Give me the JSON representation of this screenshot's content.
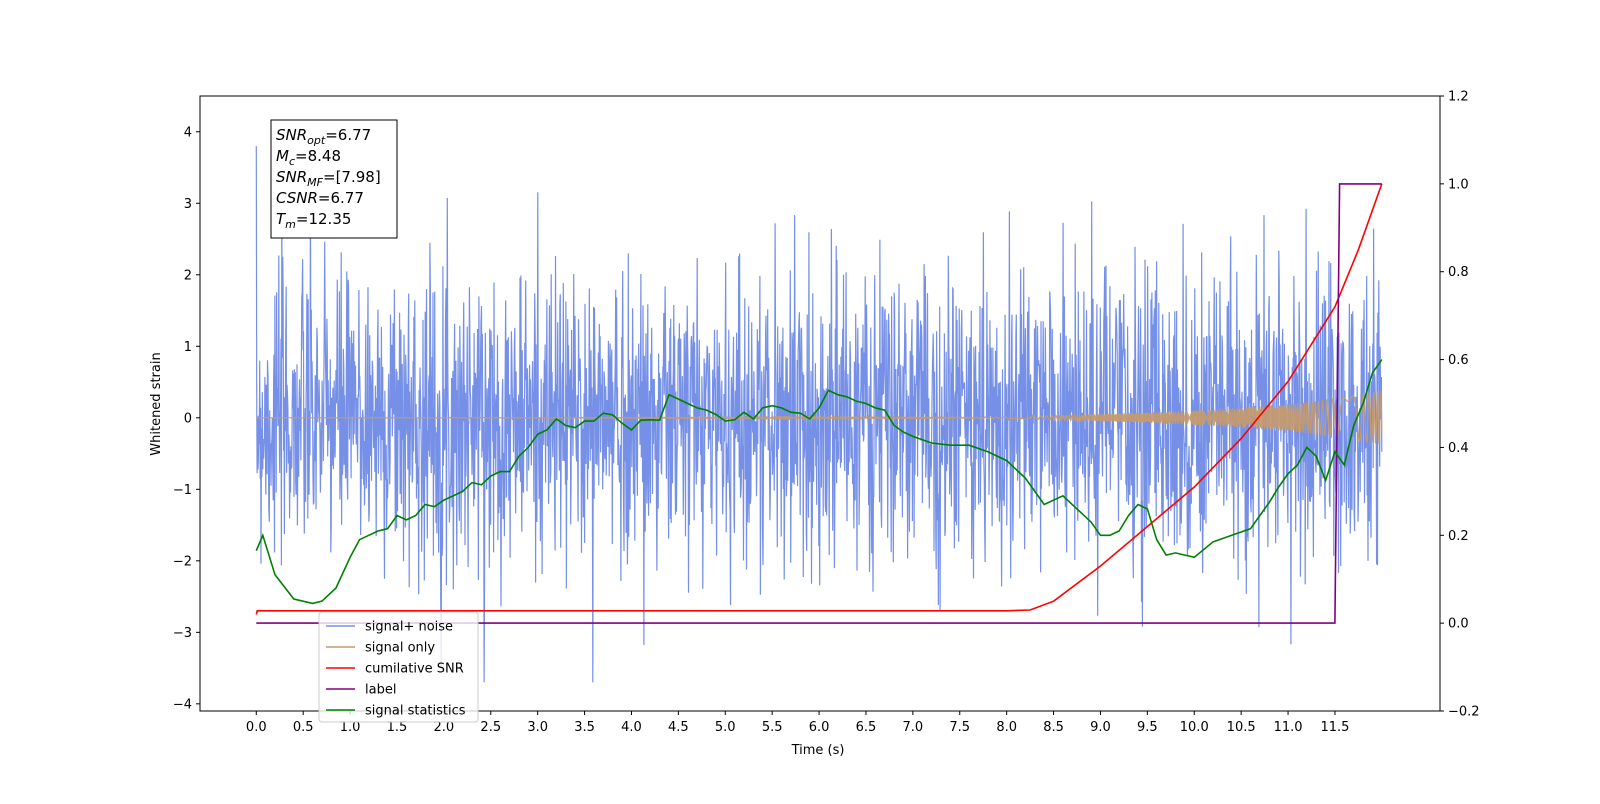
{
  "chart_data": {
    "type": "line",
    "title": "",
    "xlabel": "Time (s)",
    "ylabel": "Whitened strain",
    "y2label": "",
    "xlim": [
      -0.6,
      12.62
    ],
    "ylim": [
      -4.1,
      4.5
    ],
    "y2lim": [
      -0.2,
      1.2
    ],
    "grid": false,
    "legend_position": "lower-left",
    "x_ticks": [
      "0.0",
      "0.5",
      "1.0",
      "1.5",
      "2.0",
      "2.5",
      "3.0",
      "3.5",
      "4.0",
      "4.5",
      "5.0",
      "5.5",
      "6.0",
      "6.5",
      "7.0",
      "7.5",
      "8.0",
      "8.5",
      "9.0",
      "9.5",
      "10.0",
      "10.5",
      "11.0",
      "11.5"
    ],
    "y_ticks": [
      "−4",
      "−3",
      "−2",
      "−1",
      "0",
      "1",
      "2",
      "3",
      "4"
    ],
    "y2_ticks": [
      "−0.2",
      "0.0",
      "0.2",
      "0.4",
      "0.6",
      "0.8",
      "1.0",
      "1.2"
    ],
    "annotation": [
      {
        "base": "SNR",
        "sub": "opt",
        "rest": "=6.77"
      },
      {
        "base": "M",
        "sub": "c",
        "rest": "=8.48"
      },
      {
        "base": "SNR",
        "sub": "MF",
        "rest": "=[7.98]"
      },
      {
        "base": "CSNR",
        "sub": "",
        "rest": "=6.77"
      },
      {
        "base": "T",
        "sub": "m",
        "rest": "=12.35"
      }
    ],
    "series": [
      {
        "name": "signal+ noise",
        "color": "#7590e6",
        "axis": "left",
        "description_values": {
          "x_start": 0.0,
          "x_end": 12.0,
          "mean": 0.0,
          "typical_amplitude": 1.7,
          "max": 3.8,
          "min": -3.7
        }
      },
      {
        "name": "signal only",
        "color": "#c49b70",
        "axis": "left",
        "envelope": {
          "x": [
            0,
            8.0,
            9.0,
            10.0,
            10.5,
            11.0,
            11.5,
            12.0
          ],
          "amplitude": [
            0.0,
            0.01,
            0.05,
            0.1,
            0.14,
            0.19,
            0.27,
            0.38
          ]
        }
      },
      {
        "name": "cumilative SNR",
        "color": "#ff0000",
        "axis": "right",
        "x": [
          0.0,
          0.01,
          8.0,
          8.25,
          8.5,
          9.0,
          9.5,
          10.0,
          10.5,
          11.0,
          11.5,
          11.75,
          12.0
        ],
        "y": [
          0.02,
          0.028,
          0.028,
          0.03,
          0.05,
          0.13,
          0.22,
          0.31,
          0.42,
          0.55,
          0.72,
          0.85,
          1.0
        ]
      },
      {
        "name": "label",
        "color": "#800080",
        "axis": "right",
        "x": [
          0.0,
          11.5,
          11.55,
          12.0
        ],
        "y": [
          0.0,
          0.0,
          1.0,
          1.0
        ]
      },
      {
        "name": "signal statistics",
        "color": "#008000",
        "axis": "right",
        "x": [
          0.0,
          0.07,
          0.2,
          0.4,
          0.6,
          0.7,
          0.85,
          1.0,
          1.1,
          1.2,
          1.3,
          1.4,
          1.5,
          1.6,
          1.7,
          1.8,
          1.9,
          2.0,
          2.1,
          2.2,
          2.3,
          2.4,
          2.5,
          2.6,
          2.7,
          2.8,
          2.9,
          3.0,
          3.1,
          3.2,
          3.3,
          3.4,
          3.5,
          3.6,
          3.7,
          3.8,
          3.9,
          4.0,
          4.1,
          4.2,
          4.3,
          4.4,
          4.5,
          4.6,
          4.7,
          4.8,
          4.9,
          5.0,
          5.1,
          5.2,
          5.3,
          5.4,
          5.5,
          5.6,
          5.7,
          5.8,
          5.9,
          6.0,
          6.1,
          6.2,
          6.3,
          6.4,
          6.5,
          6.6,
          6.7,
          6.8,
          6.9,
          7.0,
          7.2,
          7.4,
          7.6,
          7.8,
          8.0,
          8.2,
          8.4,
          8.6,
          8.8,
          8.9,
          9.0,
          9.1,
          9.2,
          9.3,
          9.4,
          9.5,
          9.6,
          9.7,
          9.8,
          9.9,
          10.0,
          10.2,
          10.4,
          10.6,
          10.8,
          10.9,
          11.0,
          11.1,
          11.2,
          11.3,
          11.4,
          11.5,
          11.6,
          11.7,
          11.8,
          11.9,
          12.0
        ],
        "y": [
          0.165,
          0.2,
          0.11,
          0.055,
          0.045,
          0.05,
          0.08,
          0.15,
          0.19,
          0.2,
          0.21,
          0.215,
          0.245,
          0.235,
          0.245,
          0.27,
          0.265,
          0.28,
          0.29,
          0.3,
          0.32,
          0.315,
          0.335,
          0.345,
          0.345,
          0.38,
          0.4,
          0.43,
          0.44,
          0.465,
          0.45,
          0.445,
          0.46,
          0.46,
          0.478,
          0.474,
          0.455,
          0.44,
          0.462,
          0.463,
          0.462,
          0.52,
          0.51,
          0.5,
          0.49,
          0.485,
          0.475,
          0.46,
          0.463,
          0.48,
          0.465,
          0.49,
          0.495,
          0.49,
          0.48,
          0.478,
          0.465,
          0.49,
          0.53,
          0.52,
          0.515,
          0.505,
          0.5,
          0.49,
          0.485,
          0.45,
          0.435,
          0.425,
          0.41,
          0.405,
          0.405,
          0.39,
          0.37,
          0.33,
          0.27,
          0.29,
          0.25,
          0.23,
          0.2,
          0.2,
          0.21,
          0.245,
          0.27,
          0.26,
          0.19,
          0.155,
          0.16,
          0.155,
          0.15,
          0.185,
          0.2,
          0.215,
          0.275,
          0.31,
          0.34,
          0.36,
          0.4,
          0.38,
          0.325,
          0.39,
          0.36,
          0.45,
          0.5,
          0.57,
          0.6
        ]
      }
    ]
  }
}
